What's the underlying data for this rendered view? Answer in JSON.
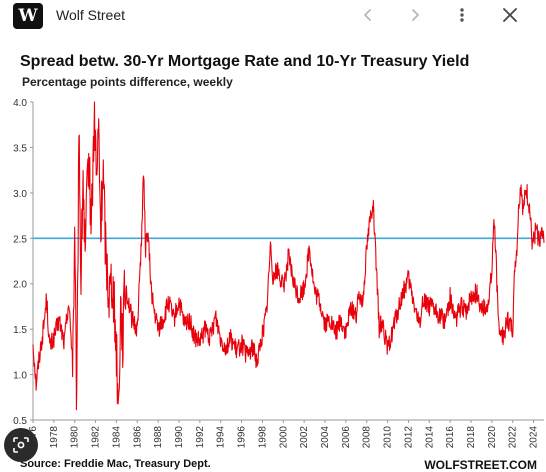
{
  "header": {
    "logo_letter": "W",
    "site_name": "Wolf Street",
    "icons": [
      "chevron-left-icon",
      "chevron-right-icon",
      "more-vertical-icon",
      "close-icon"
    ]
  },
  "footer": {
    "source": "Source: Freddie Mac, Treasury Dept.",
    "brand": "WOLFSTREET.COM"
  },
  "chart_data": {
    "type": "line",
    "title": "Spread betw. 30-Yr Mortgage Rate and 10-Yr Treasury Yield",
    "subtitle": "Percentage points difference, weekly",
    "ylim": [
      0.5,
      4.0
    ],
    "yticks": [
      "0.5",
      "1.0",
      "1.5",
      "2.0",
      "2.5",
      "3.0",
      "3.5",
      "4.0"
    ],
    "xlim": [
      1976.0,
      2025.0
    ],
    "xticks": [
      "1976",
      "1978",
      "1980",
      "1982",
      "1984",
      "1986",
      "1988",
      "1990",
      "1992",
      "1994",
      "1996",
      "1998",
      "2000",
      "2002",
      "2004",
      "2006",
      "2008",
      "2010",
      "2012",
      "2014",
      "2016",
      "2018",
      "2020",
      "2022",
      "2024"
    ],
    "grid": false,
    "reference_line": {
      "value": 2.5,
      "color": "#3fa9d6"
    },
    "series": [
      {
        "color": "#e8000b",
        "x": [
          1976.0,
          1976.3,
          1976.6,
          1977.0,
          1977.3,
          1977.6,
          1978.0,
          1978.5,
          1979.0,
          1979.4,
          1979.8,
          1980.0,
          1980.2,
          1980.4,
          1980.6,
          1980.8,
          1981.0,
          1981.3,
          1981.6,
          1981.9,
          1982.1,
          1982.3,
          1982.5,
          1982.7,
          1983.0,
          1983.3,
          1983.6,
          1984.0,
          1984.2,
          1984.4,
          1984.6,
          1984.8,
          1985.0,
          1985.5,
          1986.0,
          1986.4,
          1986.6,
          1986.8,
          1987.0,
          1987.3,
          1987.6,
          1988.0,
          1988.5,
          1989.0,
          1989.5,
          1990.0,
          1990.5,
          1991.0,
          1991.5,
          1992.0,
          1992.5,
          1993.0,
          1993.5,
          1994.0,
          1994.5,
          1995.0,
          1995.5,
          1996.0,
          1996.5,
          1997.0,
          1997.5,
          1998.0,
          1998.4,
          1998.8,
          1999.0,
          1999.5,
          2000.0,
          2000.5,
          2001.0,
          2001.5,
          2002.0,
          2002.5,
          2003.0,
          2003.5,
          2004.0,
          2004.5,
          2005.0,
          2005.5,
          2006.0,
          2006.5,
          2007.0,
          2007.3,
          2007.6,
          2008.0,
          2008.3,
          2008.6,
          2008.9,
          2009.2,
          2009.5,
          2010.0,
          2010.5,
          2011.0,
          2011.5,
          2012.0,
          2012.5,
          2013.0,
          2013.5,
          2014.0,
          2014.5,
          2015.0,
          2015.5,
          2016.0,
          2016.5,
          2017.0,
          2017.5,
          2018.0,
          2018.5,
          2019.0,
          2019.5,
          2020.0,
          2020.2,
          2020.4,
          2020.6,
          2021.0,
          2021.5,
          2022.0,
          2022.2,
          2022.4,
          2022.6,
          2022.8,
          2023.0,
          2023.3,
          2023.6,
          2023.9,
          2024.2,
          2024.5,
          2024.8,
          2025.0
        ],
        "y": [
          1.35,
          0.9,
          1.2,
          1.5,
          1.85,
          1.3,
          1.4,
          1.6,
          1.35,
          1.8,
          1.2,
          2.4,
          0.5,
          3.9,
          2.0,
          3.2,
          2.2,
          3.4,
          2.7,
          3.9,
          3.1,
          3.7,
          2.5,
          3.3,
          2.3,
          1.9,
          2.1,
          1.3,
          0.6,
          1.8,
          1.4,
          1.9,
          1.9,
          1.6,
          1.5,
          2.5,
          3.2,
          2.4,
          2.6,
          2.0,
          1.7,
          1.5,
          1.6,
          1.8,
          1.6,
          1.8,
          1.55,
          1.6,
          1.4,
          1.35,
          1.5,
          1.4,
          1.65,
          1.4,
          1.3,
          1.4,
          1.25,
          1.35,
          1.2,
          1.3,
          1.15,
          1.45,
          1.7,
          2.45,
          2.1,
          2.15,
          1.95,
          2.3,
          2.0,
          1.85,
          1.95,
          2.4,
          1.9,
          1.8,
          1.55,
          1.6,
          1.45,
          1.6,
          1.45,
          1.75,
          1.65,
          1.9,
          1.8,
          2.4,
          2.7,
          2.9,
          2.2,
          1.5,
          1.6,
          1.25,
          1.5,
          1.7,
          1.9,
          2.05,
          1.8,
          1.55,
          1.85,
          1.75,
          1.7,
          1.65,
          1.6,
          1.85,
          1.6,
          1.75,
          1.7,
          1.85,
          1.9,
          1.75,
          1.7,
          2.1,
          2.75,
          2.3,
          1.6,
          1.4,
          1.6,
          1.5,
          2.2,
          2.4,
          2.9,
          3.1,
          2.8,
          3.05,
          2.85,
          2.4,
          2.6,
          2.5,
          2.55,
          2.45
        ]
      }
    ]
  }
}
